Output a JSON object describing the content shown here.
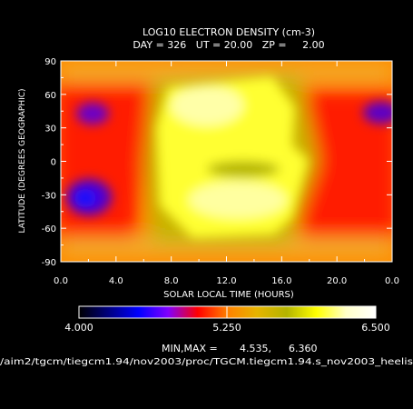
{
  "chart_data": {
    "type": "heatmap",
    "title": "LOG10 ELECTRON DENSITY (cm-3)",
    "subtitle": "DAY = 326   UT = 20.00   ZP =     2.00",
    "xlabel": "SOLAR LOCAL TIME (HOURS)",
    "ylabel": "LATITUDE (DEGREES GEOGRAPHIC)",
    "xlim": [
      0,
      24
    ],
    "ylim": [
      -90,
      90
    ],
    "x_ticks": [
      "0.0",
      "4.0",
      "8.0",
      "12.0",
      "16.0",
      "20.0",
      "0.0"
    ],
    "x_tick_values": [
      0,
      4,
      8,
      12,
      16,
      20,
      24
    ],
    "y_ticks": [
      "90",
      "60",
      "30",
      "0",
      "-30",
      "-60",
      "-90"
    ],
    "y_tick_values": [
      90,
      60,
      30,
      0,
      -30,
      -60,
      -90
    ],
    "colorbar": {
      "min": 4.0,
      "mid": 5.25,
      "max": 6.5,
      "labels": [
        "4.000",
        "5.250",
        "6.500"
      ],
      "stops": [
        "#000000",
        "#000080",
        "#0000ff",
        "#8000ff",
        "#ff0000",
        "#ff8000",
        "#e6b400",
        "#b4b400",
        "#ffff00",
        "#ffffc8",
        "#ffffff"
      ]
    },
    "data_range": {
      "label": "MIN,MAX =",
      "min": "4.535,",
      "max": "6.360"
    },
    "features": [
      {
        "lt": 1.8,
        "lat": -30,
        "value": 4.6
      },
      {
        "lt": 2.5,
        "lat": 45,
        "value": 5.0
      },
      {
        "lt": 23.0,
        "lat": 45,
        "value": 4.9
      },
      {
        "lt": 13.0,
        "lat": 50,
        "value": 6.3
      },
      {
        "lt": 12.5,
        "lat": -25,
        "value": 6.1
      },
      {
        "lt": 14.0,
        "lat": -10,
        "value": 5.8
      }
    ]
  },
  "footer_path": "/aim2/tgcm/tiegcm1.94/nov2003/proc/TGCM.tiegcm1.94.s_nov2003_heelis"
}
